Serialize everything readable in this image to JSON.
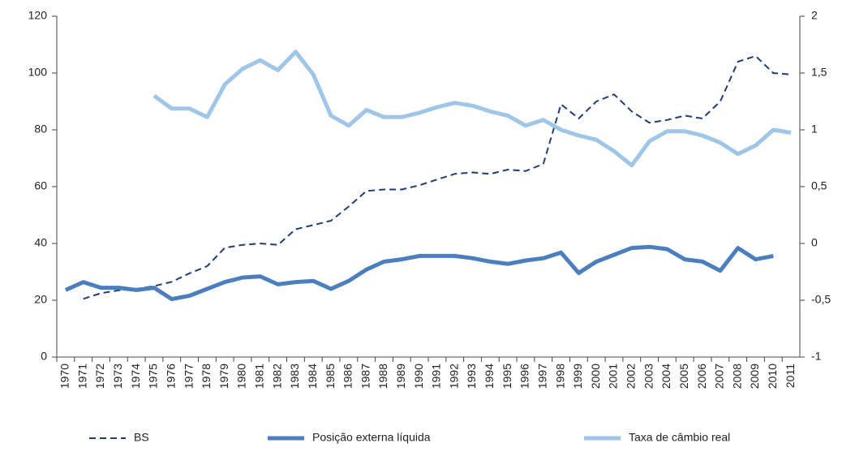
{
  "chart_data": {
    "type": "line",
    "categories": [
      "1970",
      "1971",
      "1972",
      "1973",
      "1974",
      "1975",
      "1976",
      "1977",
      "1978",
      "1979",
      "1980",
      "1981",
      "1982",
      "1983",
      "1984",
      "1985",
      "1986",
      "1987",
      "1988",
      "1989",
      "1990",
      "1991",
      "1992",
      "1993",
      "1994",
      "1995",
      "1996",
      "1997",
      "1998",
      "1999",
      "2000",
      "2001",
      "2002",
      "2003",
      "2004",
      "2005",
      "2006",
      "2007",
      "2008",
      "2009",
      "2010",
      "2011"
    ],
    "series": [
      {
        "name": "BS",
        "color": "#1f3d7a",
        "dashed": true,
        "values": [
          null,
          20.5,
          22.5,
          23.5,
          24,
          25,
          26.5,
          29.5,
          32,
          38.5,
          39.5,
          40,
          39.5,
          45,
          46.5,
          48,
          53,
          58.5,
          59,
          59,
          60.5,
          62.5,
          64.5,
          65,
          64.5,
          66,
          65.5,
          68,
          89,
          84,
          90,
          92.5,
          86.5,
          82.5,
          83.5,
          85,
          84,
          90,
          104,
          106,
          100,
          99.5
        ]
      },
      {
        "name": "Posição externa líquida",
        "color": "#4a7ebf",
        "dashed": false,
        "axis": "y2",
        "values": [
          -0.41,
          -0.34,
          -0.39,
          -0.39,
          -0.41,
          -0.39,
          -0.49,
          -0.46,
          -0.4,
          -0.34,
          -0.3,
          -0.29,
          -0.36,
          -0.34,
          -0.33,
          -0.4,
          -0.33,
          -0.23,
          -0.16,
          -0.14,
          -0.11,
          -0.11,
          -0.11,
          -0.13,
          -0.16,
          -0.18,
          -0.15,
          -0.13,
          -0.08,
          -0.26,
          -0.16,
          -0.1,
          -0.04,
          -0.03,
          -0.05,
          -0.14,
          -0.16,
          -0.24,
          -0.04,
          -0.14,
          -0.11,
          null
        ]
      },
      {
        "name": "Taxa de câmbio real",
        "color": "#9fc5e8",
        "dashed": false,
        "values": [
          null,
          null,
          null,
          null,
          null,
          92,
          87.5,
          87.5,
          84.5,
          96,
          101.5,
          104.5,
          101,
          107.5,
          99.5,
          85,
          81.5,
          87,
          84.5,
          84.5,
          86,
          88,
          89.5,
          88.5,
          86.5,
          85,
          81.5,
          83.5,
          80,
          78,
          76.5,
          72.5,
          67.5,
          76,
          79.5,
          79.5,
          78,
          75.5,
          71.5,
          74.5,
          80,
          79
        ]
      }
    ],
    "ylim": [
      0,
      120
    ],
    "yticks": [
      0,
      20,
      40,
      60,
      80,
      100,
      120
    ],
    "y2lim": [
      -1,
      2
    ],
    "y2ticks": [
      {
        "value": -1,
        "label": "-1"
      },
      {
        "value": -0.5,
        "label": "-0,5"
      },
      0,
      {
        "value": 0.5,
        "label": "0,5"
      },
      1,
      {
        "value": 1.5,
        "label": "1,5"
      },
      2
    ],
    "legend": "bottom"
  }
}
